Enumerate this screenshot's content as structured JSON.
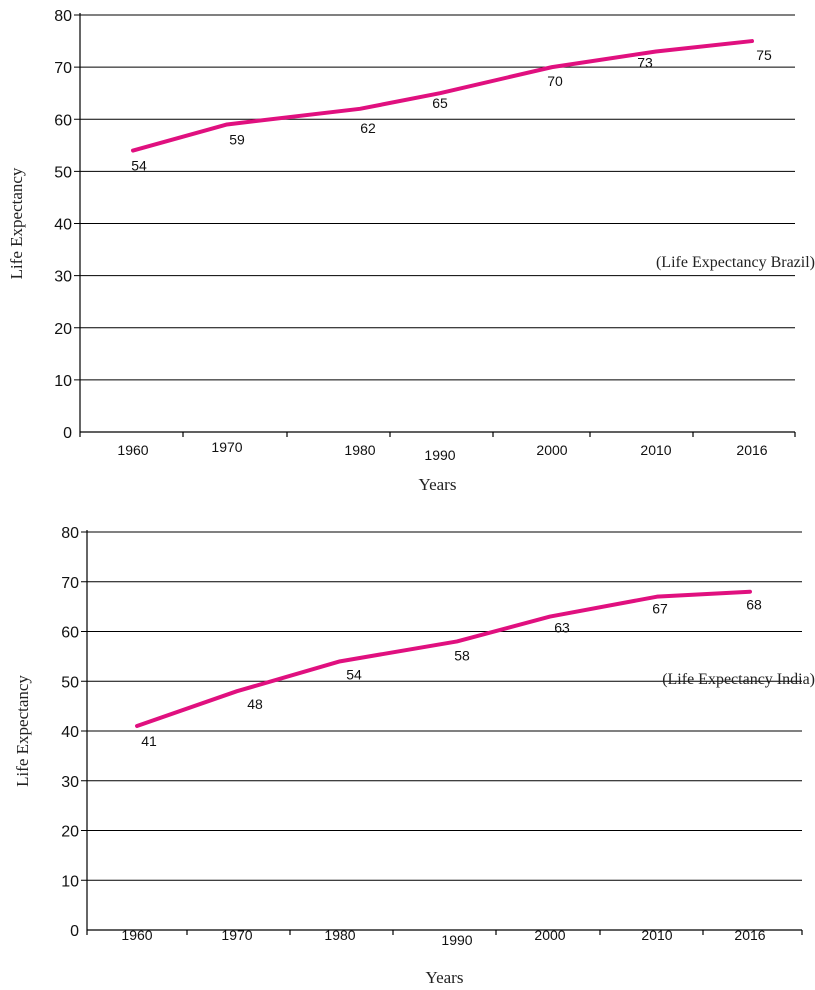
{
  "chart_data": [
    {
      "type": "line",
      "title": "",
      "annotation": "(Life Expectancy Brazil)",
      "xlabel": "Years",
      "ylabel": "Life Expectancy",
      "categories": [
        "1960",
        "1970",
        "1980",
        "1990",
        "2000",
        "2010",
        "2016"
      ],
      "series": [
        {
          "values": [
            54,
            59,
            62,
            65,
            70,
            73,
            75
          ],
          "color": "#e0107f"
        }
      ],
      "ylim": [
        0,
        80
      ],
      "yticks": [
        "0",
        "10",
        "20",
        "30",
        "40",
        "50",
        "60",
        "70",
        "80"
      ],
      "grid": true
    },
    {
      "type": "line",
      "title": "",
      "annotation": "(Life Expectancy India)",
      "xlabel": "Years",
      "ylabel": "Life Expectancy",
      "categories": [
        "1960",
        "1970",
        "1980",
        "1990",
        "2000",
        "2010",
        "2016"
      ],
      "series": [
        {
          "values": [
            41,
            48,
            54,
            58,
            63,
            67,
            68
          ],
          "color": "#e0107f"
        }
      ],
      "ylim": [
        0,
        80
      ],
      "yticks": [
        "0",
        "10",
        "20",
        "30",
        "40",
        "50",
        "60",
        "70",
        "80"
      ],
      "grid": true
    }
  ]
}
